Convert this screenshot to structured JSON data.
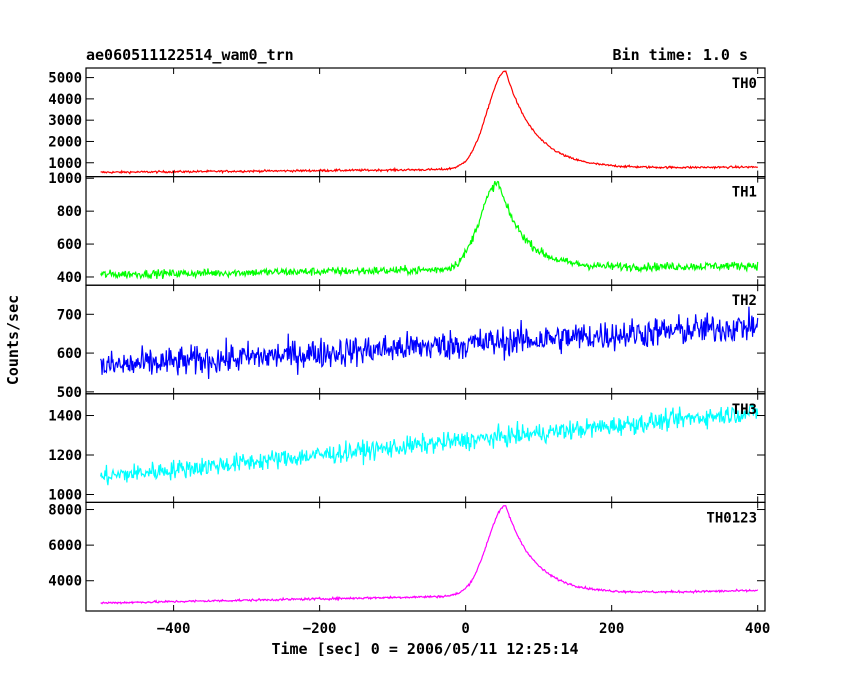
{
  "header": {
    "title": "ae060511122514_wam0_trn",
    "bin_time": "Bin time: 1.0 s"
  },
  "chart_data": {
    "type": "line",
    "title": "ae060511122514_wam0_trn",
    "subtitle": "Bin time: 1.0 s",
    "xlabel": "Time [sec] 0 = 2006/05/11 12:25:14",
    "ylabel": "Counts/sec",
    "xlim": [
      -520,
      410
    ],
    "x_ticks": [
      -400,
      -200,
      0,
      200,
      400
    ],
    "x_tick_labels": [
      "−400",
      "−200",
      "0",
      "200",
      "400"
    ],
    "panels": [
      {
        "name": "TH0",
        "color": "#ff0000",
        "ylim": [
          350,
          5450
        ],
        "y_ticks": [
          1000,
          2000,
          3000,
          4000,
          5000
        ],
        "y_tick_labels": [
          "1000",
          "2000",
          "3000",
          "4000",
          "5000"
        ],
        "profile": {
          "base_start": 550,
          "base_end": 800,
          "peak": 5300,
          "peak_time": 55,
          "rise": 25,
          "decay": 40,
          "noise": 35
        }
      },
      {
        "name": "TH1",
        "color": "#00ff00",
        "ylim": [
          350,
          1010
        ],
        "y_ticks": [
          400,
          600,
          800,
          1000
        ],
        "y_tick_labels": [
          "400",
          "600",
          "800",
          "1000"
        ],
        "profile": {
          "base_start": 415,
          "base_end": 470,
          "peak": 970,
          "peak_time": 45,
          "rise": 25,
          "decay": 35,
          "noise": 18
        }
      },
      {
        "name": "TH2",
        "color": "#0000ff",
        "ylim": [
          495,
          775
        ],
        "y_ticks": [
          500,
          600,
          700
        ],
        "y_tick_labels": [
          "500",
          "600",
          "700"
        ],
        "profile": {
          "base_start": 565,
          "base_end": 670,
          "peak": 0,
          "peak_time": 0,
          "rise": 1,
          "decay": 1,
          "noise": 28
        }
      },
      {
        "name": "TH3",
        "color": "#00ffff",
        "ylim": [
          960,
          1510
        ],
        "y_ticks": [
          1000,
          1200,
          1400
        ],
        "y_tick_labels": [
          "1000",
          "1200",
          "1400"
        ],
        "profile": {
          "base_start": 1090,
          "base_end": 1420,
          "peak": 0,
          "peak_time": 0,
          "rise": 1,
          "decay": 1,
          "noise": 35
        }
      },
      {
        "name": "TH0123",
        "color": "#ff00ff",
        "ylim": [
          2300,
          8400
        ],
        "y_ticks": [
          4000,
          6000,
          8000
        ],
        "y_tick_labels": [
          "4000",
          "6000",
          "8000"
        ],
        "profile": {
          "base_start": 2750,
          "base_end": 3450,
          "peak": 8200,
          "peak_time": 55,
          "rise": 25,
          "decay": 40,
          "noise": 45
        }
      }
    ]
  }
}
